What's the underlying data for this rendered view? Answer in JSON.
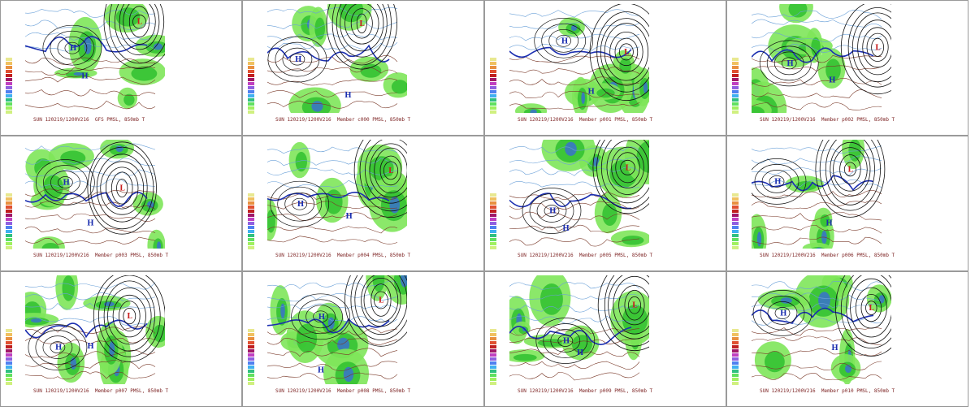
{
  "panels": [
    {
      "caption": "SUN 120219/1200V216  GFS PMSL, 850mb T"
    },
    {
      "caption": "SUN 120219/1200V216  Member c000 PMSL, 850mb T"
    },
    {
      "caption": "SUN 120219/1200V216  Member p001 PMSL, 850mb T"
    },
    {
      "caption": "SUN 120219/1200V216  Member p002 PMSL, 850mb T"
    },
    {
      "caption": "SUN 120219/1200V216  Member p003 PMSL, 850mb T"
    },
    {
      "caption": "SUN 120219/1200V216  Member p004 PMSL, 850mb T"
    },
    {
      "caption": "SUN 120219/1200V216  Member p005 PMSL, 850mb T"
    },
    {
      "caption": "SUN 120219/1200V216  Member p006 PMSL, 850mb T"
    },
    {
      "caption": "SUN 120219/1200V216  Member p007 PMSL, 850mb T"
    },
    {
      "caption": "SUN 120219/1200V216  Member p008 PMSL, 850mb T"
    },
    {
      "caption": "SUN 120219/1200V216  Member p009 PMSL, 850mb T"
    },
    {
      "caption": "SUN 120219/1200V216  Member p010 PMSL, 850mb T"
    }
  ],
  "colors": {
    "precip_light": "#7ee65a",
    "precip_mid": "#2fbf2f",
    "precip_heavy": "#1e8c3a",
    "precip_blue": "#3a6bd6",
    "isobar": "#111111",
    "temp_cold": "#6aa0d8",
    "temp_warm": "#7a3a2a",
    "freeze_line": "#1c2fb0",
    "high_label": "#1c2fb0",
    "low_label": "#c81e1e"
  },
  "legend_colors": [
    "#e8e890",
    "#f0c060",
    "#e89040",
    "#e05030",
    "#c02020",
    "#a01868",
    "#c040c0",
    "#9060e0",
    "#5080f0",
    "#40b0f0",
    "#30c080",
    "#60e060",
    "#a0f060",
    "#d0f080"
  ]
}
